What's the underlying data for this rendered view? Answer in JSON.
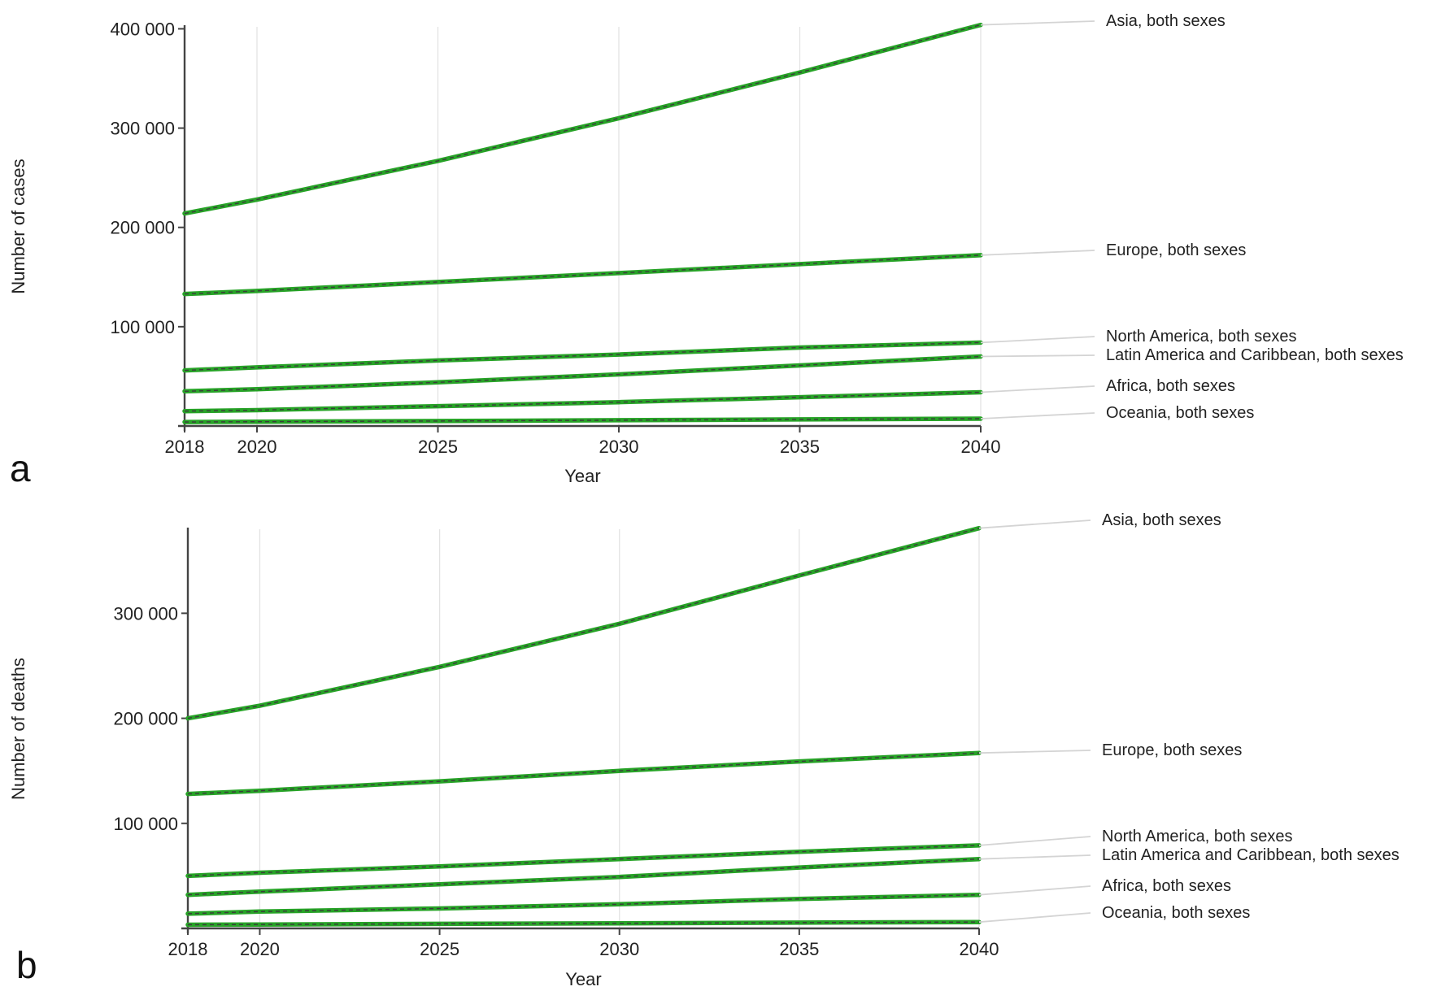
{
  "colors": {
    "line": "#27a327",
    "line_dash": "#3b3b3b",
    "grid": "#e3e3e3",
    "leader": "#d4d4d4",
    "axis": "#444444"
  },
  "chart_data": [
    {
      "panel_label": "a",
      "type": "line",
      "title": "",
      "xlabel": "Year",
      "ylabel": "Number of cases",
      "xlim": [
        2018,
        2040
      ],
      "ylim": [
        0,
        402000
      ],
      "x_ticks": [
        2018,
        2020,
        2025,
        2030,
        2035,
        2040
      ],
      "x_tick_labels": [
        "2018",
        "2020",
        "2025",
        "2030",
        "2035",
        "2040"
      ],
      "y_ticks": [
        100000,
        200000,
        300000,
        400000
      ],
      "y_tick_labels": [
        "100 000",
        "200 000",
        "300 000",
        "400 000"
      ],
      "grid": "vertical",
      "x": [
        2018,
        2020,
        2025,
        2030,
        2035,
        2040
      ],
      "series": [
        {
          "name": "Asia, both sexes",
          "values": [
            214000,
            228000,
            267000,
            310000,
            356000,
            404000
          ]
        },
        {
          "name": "Europe, both sexes",
          "values": [
            133000,
            136000,
            145000,
            154000,
            163000,
            172000
          ]
        },
        {
          "name": "North America, both sexes",
          "values": [
            56000,
            59000,
            66000,
            72000,
            79000,
            84000
          ]
        },
        {
          "name": "Latin America and Caribbean, both sexes",
          "values": [
            35000,
            37000,
            44000,
            52000,
            61000,
            70000
          ]
        },
        {
          "name": "Africa, both sexes",
          "values": [
            15000,
            16000,
            20000,
            24000,
            29000,
            34000
          ]
        },
        {
          "name": "Oceania, both sexes",
          "values": [
            4000,
            4300,
            5000,
            5800,
            6600,
            7400
          ]
        }
      ]
    },
    {
      "panel_label": "b",
      "type": "line",
      "title": "",
      "xlabel": "Year",
      "ylabel": "Number of deaths",
      "xlim": [
        2018,
        2040
      ],
      "ylim": [
        0,
        380000
      ],
      "x_ticks": [
        2018,
        2020,
        2025,
        2030,
        2035,
        2040
      ],
      "x_tick_labels": [
        "2018",
        "2020",
        "2025",
        "2030",
        "2035",
        "2040"
      ],
      "y_ticks": [
        100000,
        200000,
        300000
      ],
      "y_tick_labels": [
        "100 000",
        "200 000",
        "300 000"
      ],
      "grid": "vertical",
      "x": [
        2018,
        2020,
        2025,
        2030,
        2035,
        2040
      ],
      "series": [
        {
          "name": "Asia, both sexes",
          "values": [
            200000,
            212000,
            249000,
            290000,
            336000,
            381000
          ]
        },
        {
          "name": "Europe, both sexes",
          "values": [
            128000,
            131000,
            140000,
            150000,
            159000,
            167000
          ]
        },
        {
          "name": "North America, both sexes",
          "values": [
            50000,
            53000,
            59000,
            66000,
            73000,
            79000
          ]
        },
        {
          "name": "Latin America and Caribbean, both sexes",
          "values": [
            32000,
            35000,
            42000,
            49000,
            58000,
            66000
          ]
        },
        {
          "name": "Africa, both sexes",
          "values": [
            14000,
            16000,
            19000,
            23000,
            28000,
            32000
          ]
        },
        {
          "name": "Oceania, both sexes",
          "values": [
            3500,
            3700,
            4300,
            4900,
            5500,
            6000
          ]
        }
      ]
    }
  ]
}
